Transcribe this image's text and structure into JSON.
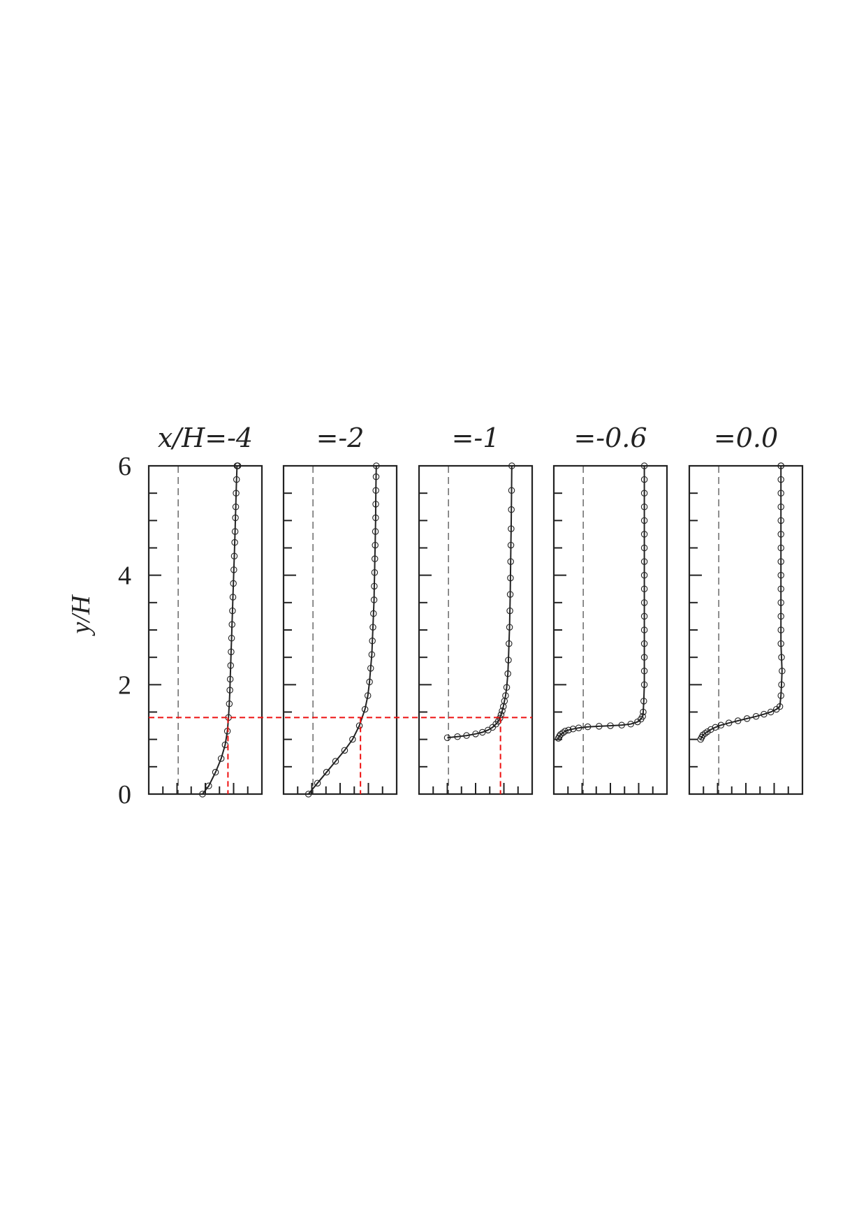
{
  "chart_data": {
    "type": "line",
    "ylabel": "y/H",
    "ylim": [
      0,
      6
    ],
    "yticks": [
      "0",
      "2",
      "4",
      "6"
    ],
    "y_minor_step": 0.5,
    "x_minor_tick_count": 8,
    "reference_height": 1.4,
    "colors": {
      "profile": "#222222",
      "reference": "#ee1111",
      "zero_line": "#444444"
    },
    "panels": [
      {
        "title": "x/H=-4",
        "marker_x": 0.7,
        "series": [
          {
            "x": [
              0.475,
              0.53,
              0.59,
              0.64,
              0.675,
              0.695,
              0.705,
              0.712,
              0.717,
              0.72,
              0.724,
              0.728,
              0.732,
              0.736,
              0.74,
              0.744,
              0.748,
              0.752,
              0.756,
              0.76,
              0.763,
              0.766,
              0.769,
              0.772,
              0.776,
              0.78,
              0.783,
              0.786,
              0.788
            ],
            "y": [
              0.0,
              0.15,
              0.4,
              0.65,
              0.9,
              1.15,
              1.4,
              1.65,
              1.9,
              2.1,
              2.35,
              2.6,
              2.85,
              3.1,
              3.35,
              3.6,
              3.85,
              4.1,
              4.35,
              4.6,
              4.8,
              5.05,
              5.25,
              5.5,
              5.75,
              6.0,
              6.0,
              6.0,
              6.0
            ]
          }
        ]
      },
      {
        "title": "=-2",
        "marker_x": 0.68,
        "series": [
          {
            "x": [
              0.22,
              0.3,
              0.38,
              0.46,
              0.54,
              0.61,
              0.67,
              0.72,
              0.745,
              0.76,
              0.77,
              0.78,
              0.785,
              0.79,
              0.795,
              0.8,
              0.802,
              0.805,
              0.807,
              0.81,
              0.812,
              0.814,
              0.815,
              0.816,
              0.818,
              0.82
            ],
            "y": [
              0.0,
              0.2,
              0.4,
              0.6,
              0.8,
              1.0,
              1.25,
              1.55,
              1.8,
              2.05,
              2.3,
              2.55,
              2.8,
              3.05,
              3.3,
              3.55,
              3.8,
              4.05,
              4.3,
              4.55,
              4.8,
              5.05,
              5.3,
              5.55,
              5.8,
              6.0
            ]
          }
        ]
      },
      {
        "title": "=-1",
        "marker_x": 0.72,
        "series": [
          {
            "x": [
              0.25,
              0.34,
              0.42,
              0.5,
              0.56,
              0.61,
              0.65,
              0.68,
              0.7,
              0.715,
              0.725,
              0.735,
              0.745,
              0.755,
              0.765,
              0.775,
              0.785,
              0.79,
              0.795,
              0.8,
              0.803,
              0.806,
              0.808,
              0.81,
              0.812,
              0.814,
              0.816,
              0.818,
              0.82
            ],
            "y": [
              1.03,
              1.05,
              1.07,
              1.1,
              1.13,
              1.17,
              1.22,
              1.28,
              1.33,
              1.39,
              1.45,
              1.52,
              1.6,
              1.7,
              1.8,
              1.95,
              2.2,
              2.45,
              2.75,
              3.05,
              3.35,
              3.65,
              3.95,
              4.25,
              4.55,
              4.85,
              5.2,
              5.55,
              6.0
            ]
          }
        ]
      },
      {
        "title": "=-0.6",
        "marker_x": null,
        "series": [
          {
            "x": [
              0.04,
              0.05,
              0.06,
              0.08,
              0.1,
              0.13,
              0.17,
              0.22,
              0.3,
              0.4,
              0.5,
              0.6,
              0.68,
              0.74,
              0.77,
              0.785,
              0.79,
              0.795,
              0.8,
              0.8,
              0.8,
              0.8,
              0.8,
              0.8,
              0.8,
              0.8,
              0.8,
              0.8,
              0.8,
              0.8,
              0.8,
              0.8,
              0.8,
              0.8,
              0.8
            ],
            "y": [
              1.02,
              1.06,
              1.09,
              1.12,
              1.15,
              1.17,
              1.19,
              1.21,
              1.23,
              1.24,
              1.25,
              1.26,
              1.28,
              1.32,
              1.37,
              1.42,
              1.5,
              1.7,
              2.0,
              2.25,
              2.5,
              2.75,
              3.0,
              3.25,
              3.5,
              3.75,
              4.0,
              4.25,
              4.5,
              4.75,
              5.0,
              5.25,
              5.5,
              5.75,
              6.0
            ]
          }
        ]
      },
      {
        "title": "=0.0",
        "marker_x": null,
        "series": [
          {
            "x": [
              0.1,
              0.11,
              0.12,
              0.14,
              0.16,
              0.19,
              0.23,
              0.28,
              0.35,
              0.43,
              0.51,
              0.59,
              0.66,
              0.72,
              0.77,
              0.8,
              0.81,
              0.815,
              0.82,
              0.815,
              0.81,
              0.81,
              0.81,
              0.81,
              0.81,
              0.81,
              0.81,
              0.81,
              0.81,
              0.81,
              0.81,
              0.81,
              0.81,
              0.81,
              0.81
            ],
            "y": [
              1.0,
              1.04,
              1.08,
              1.11,
              1.14,
              1.18,
              1.22,
              1.26,
              1.3,
              1.34,
              1.38,
              1.42,
              1.46,
              1.5,
              1.55,
              1.6,
              1.8,
              2.0,
              2.25,
              2.5,
              2.75,
              3.0,
              3.25,
              3.5,
              3.75,
              4.0,
              4.25,
              4.5,
              4.75,
              5.0,
              5.25,
              5.5,
              5.75,
              6.0,
              6.0
            ]
          }
        ]
      }
    ]
  }
}
